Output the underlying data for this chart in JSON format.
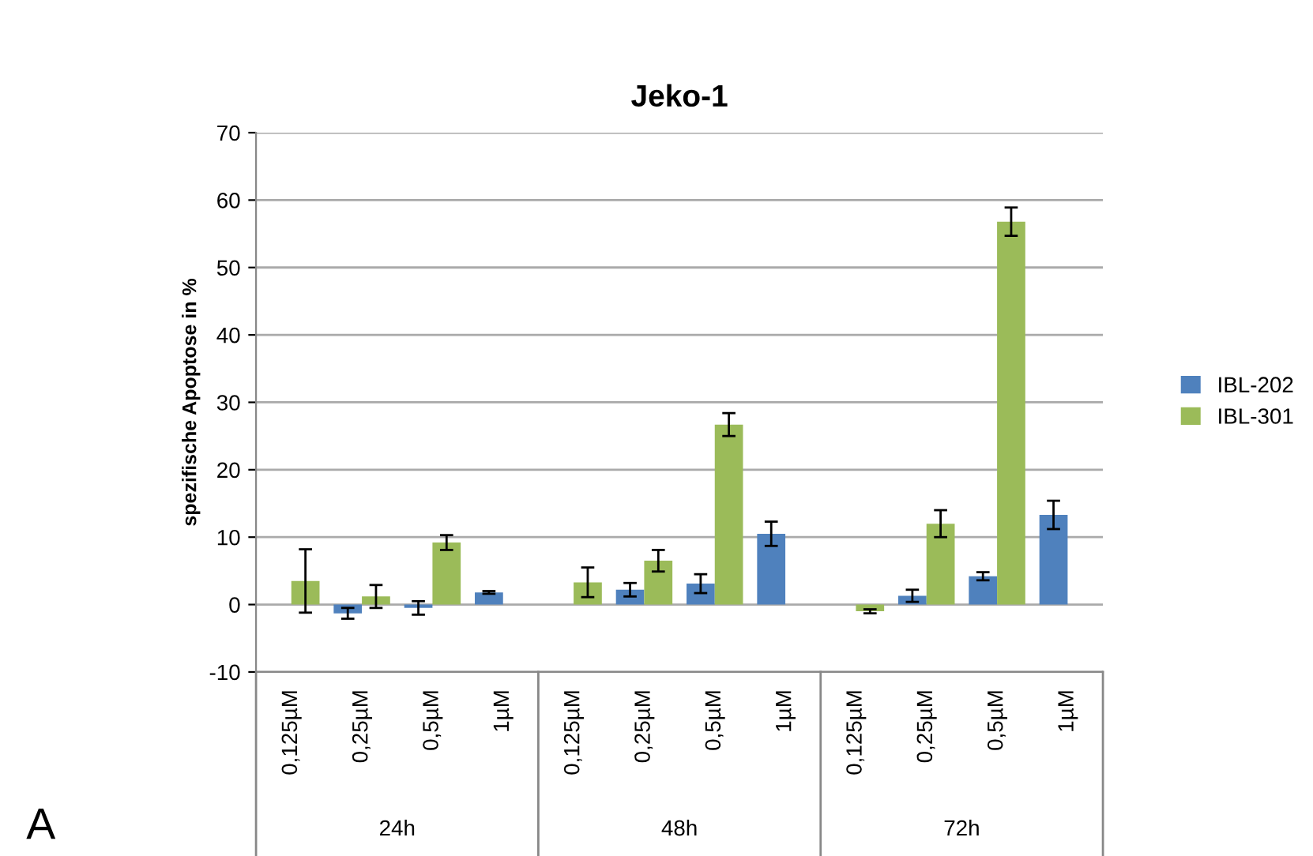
{
  "chart_data": {
    "type": "bar",
    "title": "Jeko-1",
    "ylabel": "spezifische Apoptose in %",
    "categories": [
      "0,125µM",
      "0,25µM",
      "0,5µM",
      "1µM",
      "0,125µM",
      "0,25µM",
      "0,5µM",
      "1µM",
      "0,125µM",
      "0,25µM",
      "0,5µM",
      "1µM"
    ],
    "series": [
      {
        "name": "IBL-202",
        "color": "#4f81bd",
        "values": [
          null,
          -1.3,
          -0.5,
          1.8,
          null,
          2.2,
          3.1,
          10.5,
          null,
          1.3,
          4.2,
          13.3
        ],
        "errors": [
          null,
          0.8,
          1.0,
          0.2,
          null,
          1.0,
          1.4,
          1.8,
          null,
          0.9,
          0.6,
          2.1
        ]
      },
      {
        "name": "IBL-301",
        "color": "#9bbb59",
        "values": [
          3.5,
          1.2,
          9.2,
          null,
          3.3,
          6.5,
          26.7,
          null,
          -1.0,
          12.0,
          56.8,
          null
        ],
        "errors": [
          4.7,
          1.7,
          1.1,
          null,
          2.2,
          1.6,
          1.7,
          null,
          0.3,
          2.0,
          2.1,
          null
        ]
      }
    ],
    "annotations": [
      "24h",
      "48h",
      "72h",
      "A"
    ],
    "ylim": [
      -10,
      70
    ],
    "yticks": [
      -10,
      0,
      10,
      20,
      30,
      40,
      50,
      60,
      70
    ],
    "grid": "y",
    "legend": "right"
  }
}
